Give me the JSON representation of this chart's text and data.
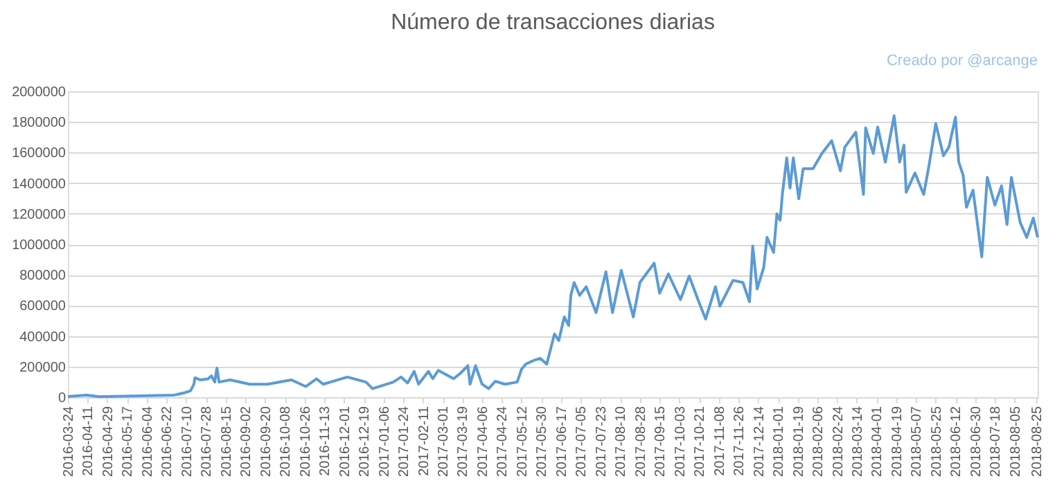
{
  "chart_data": {
    "type": "line",
    "title": "Número de transacciones diarias",
    "annotations": [
      "Creado por @arcange"
    ],
    "x": [
      "2016-03-24",
      "2016-04-10",
      "2016-04-22",
      "2016-06-29",
      "2016-07-08",
      "2016-07-14",
      "2016-07-17",
      "2016-07-18",
      "2016-07-23",
      "2016-07-30",
      "2016-08-02",
      "2016-08-05",
      "2016-08-07",
      "2016-08-09",
      "2016-08-19",
      "2016-09-06",
      "2016-09-22",
      "2016-10-14",
      "2016-10-27",
      "2016-11-06",
      "2016-11-12",
      "2016-12-04",
      "2016-12-21",
      "2016-12-27",
      "2017-01-15",
      "2017-01-22",
      "2017-01-28",
      "2017-02-03",
      "2017-02-07",
      "2017-02-16",
      "2017-02-20",
      "2017-02-25",
      "2017-03-11",
      "2017-03-17",
      "2017-03-24",
      "2017-03-26",
      "2017-03-31",
      "2017-04-06",
      "2017-04-12",
      "2017-04-18",
      "2017-04-27",
      "2017-05-08",
      "2017-05-12",
      "2017-05-16",
      "2017-05-23",
      "2017-05-29",
      "2017-06-04",
      "2017-06-11",
      "2017-06-15",
      "2017-06-20",
      "2017-06-24",
      "2017-06-26",
      "2017-06-29",
      "2017-07-04",
      "2017-07-10",
      "2017-07-19",
      "2017-07-28",
      "2017-08-03",
      "2017-08-11",
      "2017-08-22",
      "2017-08-28",
      "2017-09-10",
      "2017-09-15",
      "2017-09-23",
      "2017-10-04",
      "2017-10-12",
      "2017-10-20",
      "2017-10-27",
      "2017-11-05",
      "2017-11-09",
      "2017-11-21",
      "2017-11-30",
      "2017-12-06",
      "2017-12-09",
      "2017-12-13",
      "2017-12-19",
      "2017-12-22",
      "2017-12-28",
      "2017-12-31",
      "2018-01-03",
      "2018-01-05",
      "2018-01-09",
      "2018-01-12",
      "2018-01-15",
      "2018-01-20",
      "2018-01-24",
      "2018-02-02",
      "2018-02-10",
      "2018-02-19",
      "2018-02-27",
      "2018-03-03",
      "2018-03-13",
      "2018-03-20",
      "2018-03-22",
      "2018-03-29",
      "2018-04-02",
      "2018-04-09",
      "2018-04-17",
      "2018-04-22",
      "2018-04-26",
      "2018-04-28",
      "2018-05-06",
      "2018-05-14",
      "2018-05-19",
      "2018-05-25",
      "2018-06-01",
      "2018-06-06",
      "2018-06-12",
      "2018-06-15",
      "2018-06-19",
      "2018-06-22",
      "2018-06-28",
      "2018-07-06",
      "2018-07-11",
      "2018-07-18",
      "2018-07-24",
      "2018-07-29",
      "2018-08-02",
      "2018-08-10",
      "2018-08-16",
      "2018-08-22",
      "2018-08-26"
    ],
    "series": [
      {
        "color": "#5b9bd5",
        "values": [
          5000,
          14000,
          3000,
          14000,
          28000,
          42000,
          85000,
          127000,
          113000,
          120000,
          140000,
          99000,
          190000,
          99000,
          113000,
          85000,
          85000,
          113000,
          70000,
          120000,
          85000,
          132000,
          99000,
          56000,
          99000,
          132000,
          93000,
          169000,
          85000,
          169000,
          121000,
          175000,
          121000,
          155000,
          206000,
          85000,
          206000,
          85000,
          56000,
          104000,
          85000,
          99000,
          183000,
          217000,
          240000,
          254000,
          216000,
          413000,
          371000,
          525000,
          469000,
          666000,
          750000,
          666000,
          722000,
          553000,
          820000,
          553000,
          829000,
          525000,
          750000,
          876000,
          680000,
          806000,
          638000,
          792000,
          638000,
          511000,
          722000,
          596000,
          764000,
          750000,
          624000,
          989000,
          708000,
          848000,
          1045000,
          947000,
          1199000,
          1157000,
          1326000,
          1565000,
          1368000,
          1565000,
          1298000,
          1494000,
          1494000,
          1593000,
          1677000,
          1480000,
          1635000,
          1733000,
          1326000,
          1761000,
          1593000,
          1767000,
          1537000,
          1840000,
          1537000,
          1649000,
          1340000,
          1466000,
          1326000,
          1522000,
          1789000,
          1579000,
          1635000,
          1831000,
          1537000,
          1452000,
          1242000,
          1354000,
          918000,
          1438000,
          1256000,
          1382000,
          1129000,
          1438000,
          1143000,
          1045000,
          1171000,
          1045000
        ]
      }
    ],
    "xlim": [
      "2016-03-24",
      "2018-08-26"
    ],
    "xticks": [
      "2016-03-24",
      "2016-04-11",
      "2016-04-29",
      "2016-05-17",
      "2016-06-04",
      "2016-06-22",
      "2016-07-10",
      "2016-07-28",
      "2016-08-15",
      "2016-09-02",
      "2016-09-20",
      "2016-10-08",
      "2016-10-26",
      "2016-11-13",
      "2016-12-01",
      "2016-12-19",
      "2017-01-06",
      "2017-01-24",
      "2017-02-11",
      "2017-03-01",
      "2017-03-19",
      "2017-04-06",
      "2017-04-24",
      "2017-05-12",
      "2017-05-30",
      "2017-06-17",
      "2017-07-05",
      "2017-07-23",
      "2017-08-10",
      "2017-08-28",
      "2017-09-15",
      "2017-10-03",
      "2017-10-21",
      "2017-11-08",
      "2017-11-26",
      "2017-12-14",
      "2018-01-01",
      "2018-01-19",
      "2018-02-06",
      "2018-02-24",
      "2018-03-14",
      "2018-04-01",
      "2018-04-19",
      "2018-05-07",
      "2018-05-25",
      "2018-06-12",
      "2018-06-30",
      "2018-07-18",
      "2018-08-05",
      "2018-08-25"
    ],
    "ylim": [
      0,
      2000000
    ],
    "yticks": [
      0,
      200000,
      400000,
      600000,
      800000,
      1000000,
      1200000,
      1400000,
      1600000,
      1800000,
      2000000
    ],
    "grid": "y",
    "legend": false,
    "marker": "none",
    "line_style": "solid"
  }
}
